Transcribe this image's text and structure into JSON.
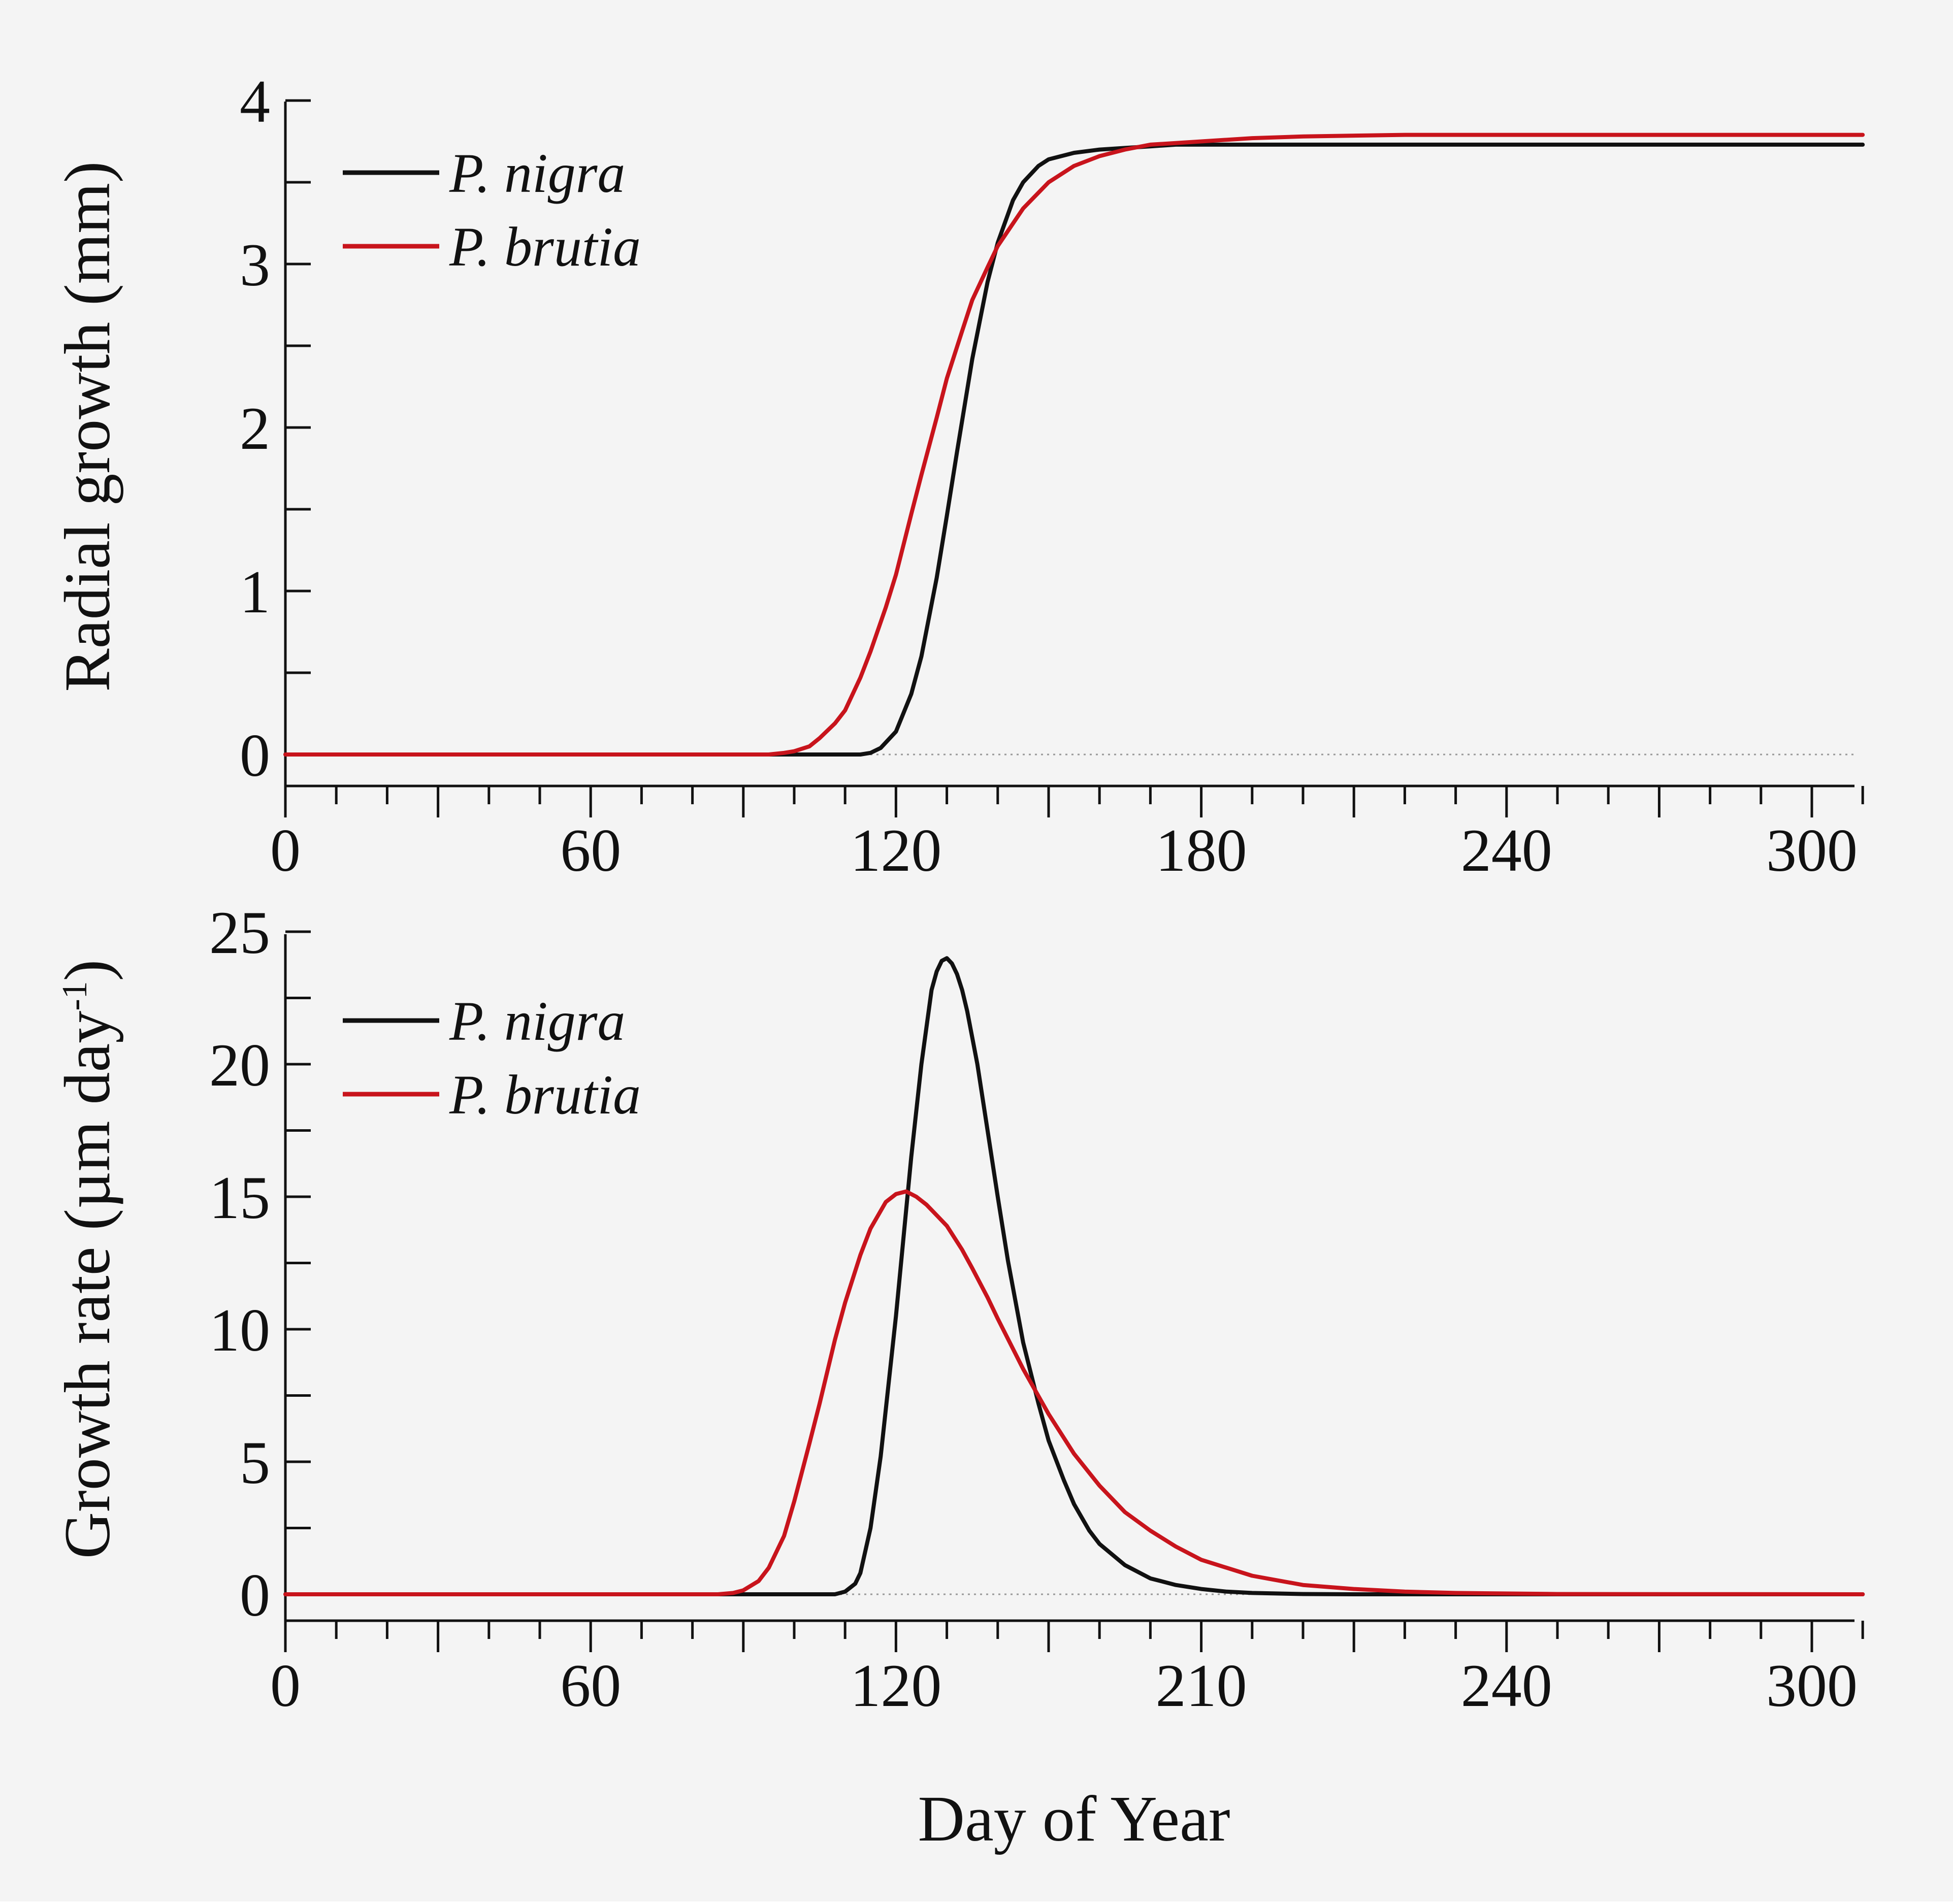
{
  "figure": {
    "xlabel": "Day of Year"
  },
  "chart_data": [
    {
      "type": "line",
      "title": "",
      "xlabel": "",
      "ylabel": "Radial growth (mm)",
      "xlim": [
        0,
        310
      ],
      "ylim": [
        -0.2,
        4
      ],
      "xticks": [
        "0",
        "60",
        "120",
        "180",
        "240",
        "300"
      ],
      "yticks": [
        "0",
        "1",
        "2",
        "3",
        "4"
      ],
      "series": [
        {
          "name": "P. nigra",
          "color": "#111111",
          "x": [
            0,
            100,
            110,
            113,
            115,
            117,
            120,
            123,
            125,
            128,
            130,
            132,
            135,
            138,
            140,
            143,
            145,
            148,
            150,
            155,
            160,
            165,
            170,
            175,
            180,
            190,
            200,
            220,
            250,
            280,
            310
          ],
          "y": [
            0,
            0,
            0,
            0,
            0.01,
            0.04,
            0.14,
            0.37,
            0.6,
            1.08,
            1.46,
            1.85,
            2.42,
            2.89,
            3.13,
            3.39,
            3.5,
            3.6,
            3.64,
            3.68,
            3.7,
            3.71,
            3.72,
            3.73,
            3.73,
            3.73,
            3.73,
            3.73,
            3.73,
            3.73,
            3.73
          ]
        },
        {
          "name": "P. brutia",
          "color": "#c8141c",
          "x": [
            0,
            90,
            95,
            98,
            100,
            103,
            105,
            108,
            110,
            113,
            115,
            118,
            120,
            123,
            125,
            128,
            130,
            133,
            135,
            138,
            140,
            145,
            150,
            155,
            160,
            165,
            170,
            175,
            180,
            190,
            200,
            220,
            250,
            280,
            310
          ],
          "y": [
            0,
            0,
            0,
            0.01,
            0.02,
            0.05,
            0.1,
            0.19,
            0.27,
            0.47,
            0.63,
            0.9,
            1.1,
            1.47,
            1.71,
            2.06,
            2.3,
            2.59,
            2.78,
            2.98,
            3.11,
            3.34,
            3.5,
            3.6,
            3.66,
            3.7,
            3.73,
            3.74,
            3.75,
            3.77,
            3.78,
            3.79,
            3.79,
            3.79,
            3.79
          ]
        }
      ],
      "legend": {
        "position": "top-left",
        "entries": [
          "P. nigra",
          "P. brutia"
        ]
      }
    },
    {
      "type": "line",
      "title": "",
      "xlabel": "Day of Year",
      "ylabel": "Growth rate (µm day",
      "ylabel_sup": "-1",
      "ylabel_close": ")",
      "xlim": [
        0,
        310
      ],
      "ylim": [
        -1,
        25
      ],
      "xticks": [
        "0",
        "60",
        "120",
        "210",
        "240",
        "300"
      ],
      "yticks": [
        "0",
        "5",
        "10",
        "15",
        "20",
        "25"
      ],
      "series": [
        {
          "name": "P. nigra",
          "color": "#111111",
          "x": [
            0,
            100,
            108,
            110,
            112,
            113,
            115,
            117,
            120,
            123,
            125,
            127,
            128,
            129,
            130,
            131,
            132,
            133,
            134,
            135,
            136,
            138,
            140,
            142,
            145,
            148,
            150,
            153,
            155,
            158,
            160,
            165,
            170,
            175,
            180,
            185,
            190,
            200,
            210,
            230,
            260,
            310
          ],
          "y": [
            0,
            0,
            0,
            0.1,
            0.4,
            0.8,
            2.5,
            5.2,
            10.5,
            16.5,
            20,
            22.8,
            23.5,
            23.9,
            24.0,
            23.8,
            23.4,
            22.8,
            22.0,
            21.0,
            20.0,
            17.5,
            15.0,
            12.6,
            9.5,
            7.2,
            5.8,
            4.3,
            3.4,
            2.4,
            1.9,
            1.1,
            0.6,
            0.35,
            0.2,
            0.1,
            0.05,
            0.01,
            0,
            0,
            0,
            0
          ]
        },
        {
          "name": "P. brutia",
          "color": "#c8141c",
          "x": [
            0,
            85,
            88,
            90,
            93,
            95,
            98,
            100,
            103,
            105,
            108,
            110,
            113,
            115,
            118,
            120,
            122,
            124,
            126,
            128,
            130,
            133,
            135,
            138,
            140,
            145,
            150,
            155,
            160,
            165,
            170,
            175,
            180,
            190,
            200,
            210,
            220,
            230,
            250,
            310
          ],
          "y": [
            0,
            0,
            0.05,
            0.15,
            0.5,
            1.0,
            2.2,
            3.5,
            5.7,
            7.2,
            9.6,
            11.0,
            12.8,
            13.8,
            14.8,
            15.1,
            15.2,
            15.0,
            14.7,
            14.3,
            13.9,
            13.0,
            12.3,
            11.2,
            10.4,
            8.5,
            6.8,
            5.3,
            4.1,
            3.1,
            2.4,
            1.8,
            1.3,
            0.7,
            0.35,
            0.2,
            0.1,
            0.05,
            0.01,
            0
          ]
        }
      ],
      "legend": {
        "position": "top-left",
        "entries": [
          "P. nigra",
          "P. brutia"
        ]
      }
    }
  ]
}
